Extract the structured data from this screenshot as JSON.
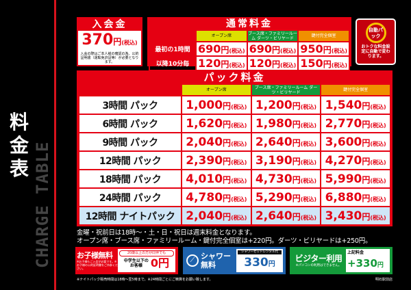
{
  "side": {
    "title": "料金表",
    "subtitle": "CHARGE TABLE"
  },
  "entry": {
    "title": "入会金",
    "price": "370",
    "yen": "円",
    "tax": "(税込)",
    "note": "入会の際はご本人様の確認の為、公的証明書（運転免許証等）が必要となります。"
  },
  "normal": {
    "title": "通常料金",
    "columns": [
      "オープン席",
      "ブース席・ファミリールーム ダーツ・ビリヤード",
      "鍵付完全個室"
    ],
    "rows": [
      {
        "label": "最初の1時間",
        "prices": [
          "690",
          "690",
          "950"
        ]
      },
      {
        "label": "以降10分毎",
        "prices": [
          "120",
          "120",
          "150"
        ]
      }
    ]
  },
  "auto_pack": {
    "badge": "自動パック",
    "text": "おトクな料金設定に自動で変わります。"
  },
  "pack": {
    "title": "パック料金",
    "columns": [
      "オープン席",
      "ブース席・ファミリールーム ダーツ・ビリヤード",
      "鍵付完全個室"
    ],
    "rows": [
      {
        "label": "3時間 パック",
        "prices": [
          "1,000",
          "1,200",
          "1,540"
        ]
      },
      {
        "label": "6時間 パック",
        "prices": [
          "1,620",
          "1,980",
          "2,770"
        ]
      },
      {
        "label": "9時間 パック",
        "prices": [
          "2,040",
          "2,640",
          "3,600"
        ]
      },
      {
        "label": "12時間 パック",
        "prices": [
          "2,390",
          "3,190",
          "4,270"
        ]
      },
      {
        "label": "18時間 パック",
        "prices": [
          "4,010",
          "4,730",
          "5,990"
        ]
      },
      {
        "label": "24時間 パック",
        "prices": [
          "4,780",
          "5,290",
          "6,880"
        ]
      },
      {
        "label": "12時間 ナイトパック",
        "prices": [
          "2,040",
          "2,640",
          "3,430"
        ]
      }
    ]
  },
  "notes": [
    "金曜・祝前日は18時～・土・日・祝日は週末料金となります。",
    "オープン席・ブース席・ファミリールーム・鍵付完全個室は+220円。ダーツ・ビリヤードは+250円。"
  ],
  "child": {
    "title": "お子様無料",
    "note": "※お子様もご入会が必要です。※お子様の公的証明書をご持参ください。",
    "tag": "20歳以上の方が同伴でも",
    "label": "中学生以下のお客様",
    "price": "0円"
  },
  "shower": {
    "title1": "シャワー",
    "title2": "無料",
    "tag": "シャワーセットレンタル代",
    "price": "330",
    "yen": "円"
  },
  "visitor": {
    "title": "ビジター利用",
    "note": "※パソコンの利用はできません。",
    "tag": "上記料金",
    "price": "+330",
    "yen": "円"
  },
  "footnote": "※ナイトパック販売時間は18時～翌5時まで。※24時間ごとにご精算をお願い致します。",
  "store": "明石駅前店"
}
